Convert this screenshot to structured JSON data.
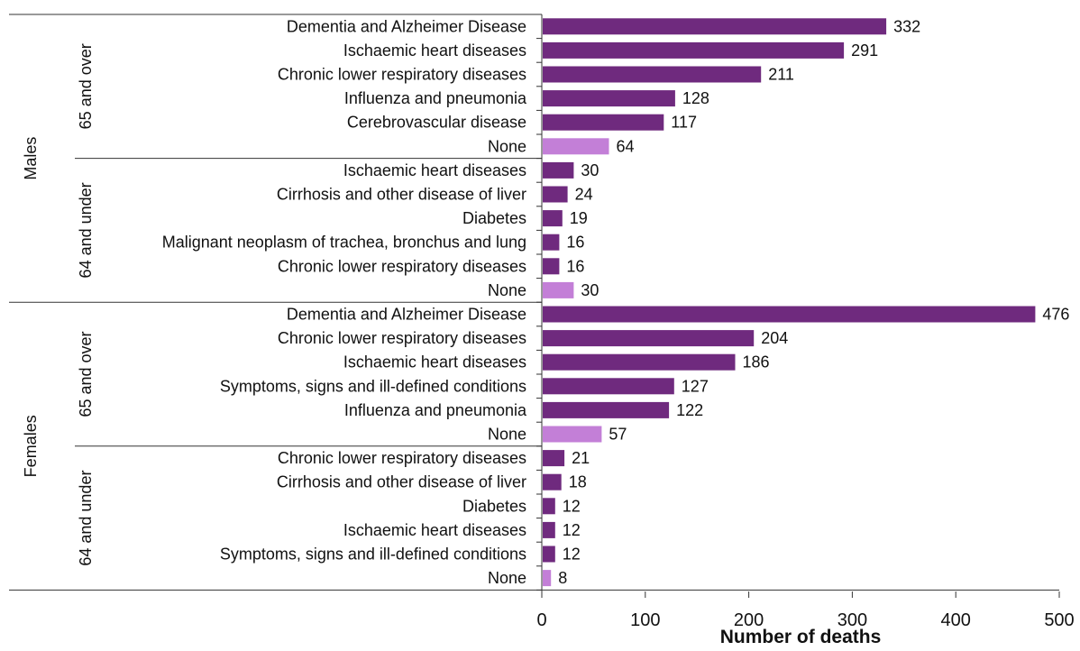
{
  "chart_data": {
    "type": "bar",
    "orientation": "horizontal",
    "xlabel": "Number of deaths",
    "xlim": [
      0,
      500
    ],
    "xticks": [
      0,
      100,
      200,
      300,
      400,
      500
    ],
    "grid": false,
    "colors": {
      "cause": "#6f2a7e",
      "none": "#c37fd7"
    },
    "sexes": [
      {
        "label": "Males",
        "age_groups": [
          {
            "label": "65 and over",
            "bars": [
              {
                "category": "Dementia and Alzheimer Disease",
                "value": 332,
                "kind": "cause"
              },
              {
                "category": "Ischaemic heart diseases",
                "value": 291,
                "kind": "cause"
              },
              {
                "category": "Chronic lower respiratory diseases",
                "value": 211,
                "kind": "cause"
              },
              {
                "category": "Influenza and pneumonia",
                "value": 128,
                "kind": "cause"
              },
              {
                "category": "Cerebrovascular disease",
                "value": 117,
                "kind": "cause"
              },
              {
                "category": "None",
                "value": 64,
                "kind": "none"
              }
            ]
          },
          {
            "label": "64 and under",
            "bars": [
              {
                "category": "Ischaemic heart diseases",
                "value": 30,
                "kind": "cause"
              },
              {
                "category": "Cirrhosis and other disease of liver",
                "value": 24,
                "kind": "cause"
              },
              {
                "category": "Diabetes",
                "value": 19,
                "kind": "cause"
              },
              {
                "category": "Malignant neoplasm of trachea, bronchus and lung",
                "value": 16,
                "kind": "cause"
              },
              {
                "category": "Chronic lower respiratory diseases",
                "value": 16,
                "kind": "cause"
              },
              {
                "category": "None",
                "value": 30,
                "kind": "none"
              }
            ]
          }
        ]
      },
      {
        "label": "Females",
        "age_groups": [
          {
            "label": "65 and over",
            "bars": [
              {
                "category": "Dementia and Alzheimer Disease",
                "value": 476,
                "kind": "cause"
              },
              {
                "category": "Chronic lower respiratory diseases",
                "value": 204,
                "kind": "cause"
              },
              {
                "category": "Ischaemic heart diseases",
                "value": 186,
                "kind": "cause"
              },
              {
                "category": "Symptoms, signs and ill-defined conditions",
                "value": 127,
                "kind": "cause"
              },
              {
                "category": "Influenza and pneumonia",
                "value": 122,
                "kind": "cause"
              },
              {
                "category": "None",
                "value": 57,
                "kind": "none"
              }
            ]
          },
          {
            "label": "64 and under",
            "bars": [
              {
                "category": "Chronic lower respiratory diseases",
                "value": 21,
                "kind": "cause"
              },
              {
                "category": "Cirrhosis and other disease of liver",
                "value": 18,
                "kind": "cause"
              },
              {
                "category": "Diabetes",
                "value": 12,
                "kind": "cause"
              },
              {
                "category": "Ischaemic heart diseases",
                "value": 12,
                "kind": "cause"
              },
              {
                "category": "Symptoms, signs and ill-defined conditions",
                "value": 12,
                "kind": "cause"
              },
              {
                "category": "None",
                "value": 8,
                "kind": "none"
              }
            ]
          }
        ]
      }
    ]
  }
}
